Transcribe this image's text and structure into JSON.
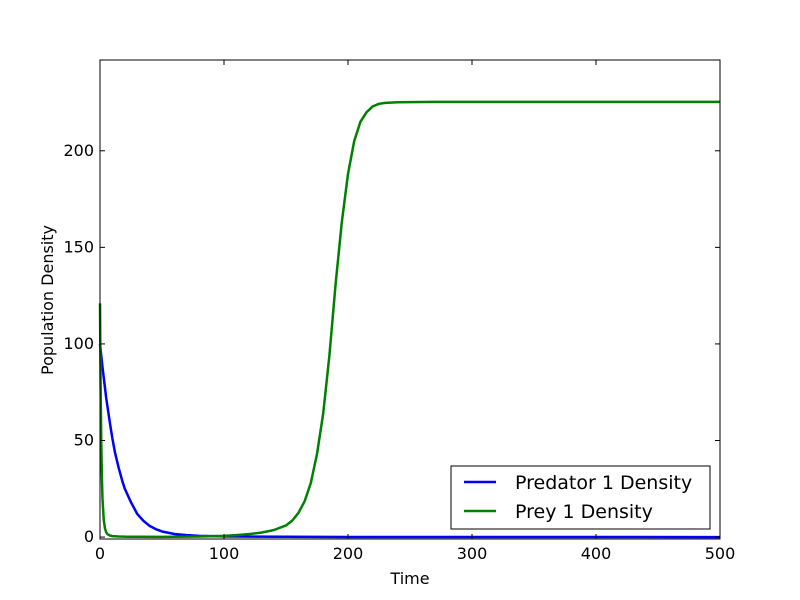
{
  "chart_data": {
    "type": "line",
    "title": "",
    "xlabel": "Time",
    "ylabel": "Population Density",
    "xlim": [
      0,
      500
    ],
    "ylim": [
      -1,
      247
    ],
    "xticks": [
      0,
      100,
      200,
      300,
      400,
      500
    ],
    "yticks": [
      0,
      50,
      100,
      150,
      200
    ],
    "grid": false,
    "legend_position": "lower-right",
    "series": [
      {
        "name": "Predator 1 Density",
        "color": "#0000ff",
        "x": [
          0,
          2,
          5,
          8,
          10,
          12,
          15,
          18,
          20,
          25,
          30,
          35,
          40,
          45,
          50,
          60,
          70,
          80,
          100,
          150,
          200,
          300,
          400,
          500
        ],
        "y": [
          100,
          88,
          72,
          59,
          51,
          44,
          36,
          29,
          25,
          18,
          12,
          8.4,
          5.8,
          4.1,
          2.9,
          1.6,
          1.0,
          0.6,
          0.35,
          0.15,
          0.05,
          0.02,
          0.01,
          0.0
        ]
      },
      {
        "name": "Prey 1 Density",
        "color": "#008000",
        "x": [
          0,
          0.5,
          1,
          1.5,
          2,
          3,
          4,
          5,
          6,
          8,
          10,
          15,
          20,
          30,
          50,
          80,
          100,
          110,
          120,
          130,
          140,
          150,
          155,
          160,
          165,
          170,
          175,
          180,
          185,
          190,
          195,
          200,
          205,
          210,
          215,
          220,
          225,
          230,
          240,
          250,
          270,
          300,
          400,
          500
        ],
        "y": [
          121,
          78,
          50,
          32,
          20,
          9,
          4.5,
          2.5,
          1.5,
          0.8,
          0.5,
          0.3,
          0.2,
          0.15,
          0.12,
          0.3,
          0.6,
          1.0,
          1.5,
          2.3,
          3.6,
          6.0,
          8.5,
          12.5,
          18.5,
          28,
          43,
          64,
          94,
          131,
          163,
          188,
          205,
          215,
          220,
          223,
          224.3,
          224.8,
          225.1,
          225.2,
          225.3,
          225.3,
          225.3,
          225.3
        ]
      }
    ]
  }
}
